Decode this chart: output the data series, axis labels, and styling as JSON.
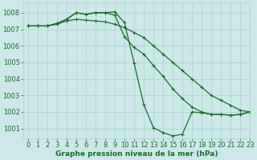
{
  "xlabel": "Graphe pression niveau de la mer (hPa)",
  "xlim": [
    -0.5,
    23
  ],
  "ylim": [
    1000.4,
    1008.6
  ],
  "yticks": [
    1001,
    1002,
    1003,
    1004,
    1005,
    1006,
    1007,
    1008
  ],
  "xticks": [
    0,
    1,
    2,
    3,
    4,
    5,
    6,
    7,
    8,
    9,
    10,
    11,
    12,
    13,
    14,
    15,
    16,
    17,
    18,
    19,
    20,
    21,
    22,
    23
  ],
  "bg_color": "#cce8e8",
  "grid_color": "#b0d0d0",
  "line_color": "#1a6e2e",
  "line1_x": [
    0,
    1,
    2,
    3,
    4,
    5,
    6,
    7,
    8,
    9,
    10,
    11,
    12,
    13,
    14,
    15,
    16,
    17,
    18,
    19,
    20,
    21,
    22,
    23
  ],
  "line1_y": [
    1007.2,
    1007.2,
    1007.2,
    1007.3,
    1007.5,
    1007.6,
    1007.55,
    1007.5,
    1007.45,
    1007.3,
    1007.1,
    1006.8,
    1006.5,
    1006.0,
    1005.5,
    1005.0,
    1004.5,
    1004.0,
    1003.5,
    1003.0,
    1002.7,
    1002.4,
    1002.1,
    1002.0
  ],
  "line2_x": [
    0,
    1,
    2,
    3,
    4,
    5,
    6,
    7,
    8,
    9,
    10,
    11,
    12,
    13,
    14,
    15,
    16,
    17,
    18,
    19,
    20,
    21,
    22,
    23
  ],
  "line2_y": [
    1007.2,
    1007.2,
    1007.2,
    1007.35,
    1007.6,
    1008.0,
    1007.9,
    1008.0,
    1008.0,
    1007.85,
    1006.55,
    1005.9,
    1005.5,
    1004.8,
    1004.15,
    1003.4,
    1002.8,
    1002.3,
    1002.0,
    1001.85,
    1001.85,
    1001.8,
    1001.85,
    1002.0
  ],
  "line3_x": [
    0,
    1,
    2,
    3,
    4,
    5,
    6,
    7,
    8,
    9,
    10,
    11,
    12,
    13,
    14,
    15,
    16,
    17,
    18,
    19,
    20,
    21,
    22,
    23
  ],
  "line3_y": [
    1007.2,
    1007.2,
    1007.2,
    1007.35,
    1007.6,
    1008.0,
    1007.9,
    1008.0,
    1008.0,
    1008.05,
    1007.4,
    1004.95,
    1002.45,
    1001.05,
    1000.75,
    1000.55,
    1000.65,
    1002.0,
    1001.95,
    1001.85,
    1001.85,
    1001.8,
    1001.85,
    1002.0
  ],
  "marker": "+",
  "marker_size": 3,
  "linewidth": 0.9,
  "font_color": "#1a6e2e",
  "xlabel_fontsize": 6.5,
  "tick_fontsize": 6.0
}
